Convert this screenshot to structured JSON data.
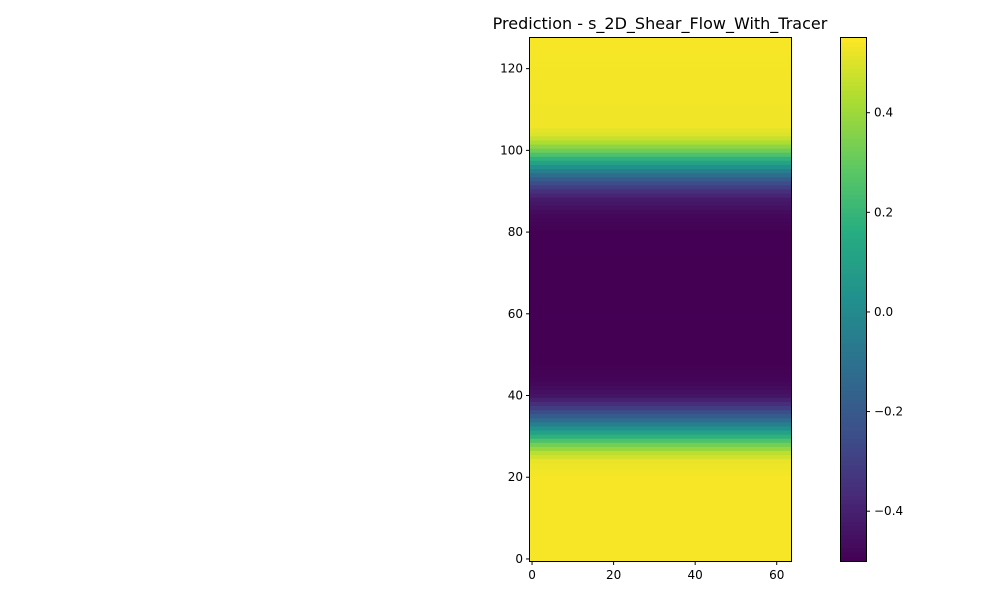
{
  "chart_data": {
    "type": "heatmap",
    "title": "Prediction - s_2D_Shear_Flow_With_Tracer",
    "xlabel": "",
    "ylabel": "",
    "xlim": [
      -0.5,
      63.5
    ],
    "ylim": [
      -0.5,
      127.5
    ],
    "xticks": [
      0,
      20,
      40,
      60
    ],
    "yticks": [
      0,
      20,
      40,
      60,
      80,
      100,
      120
    ],
    "grid": false,
    "colormap": "viridis",
    "shape": [
      128,
      64
    ],
    "profile_note": "",
    "row_profile": {
      "y": [
        0,
        20,
        24,
        26,
        28,
        30,
        32,
        34,
        36,
        38,
        40,
        44,
        48,
        80,
        84,
        88,
        90,
        92,
        94,
        96,
        98,
        100,
        102,
        104,
        106,
        127
      ],
      "value": [
        0.54,
        0.54,
        0.52,
        0.45,
        0.33,
        0.18,
        0.03,
        -0.12,
        -0.25,
        -0.36,
        -0.44,
        -0.49,
        -0.5,
        -0.5,
        -0.48,
        -0.42,
        -0.35,
        -0.25,
        -0.12,
        0.03,
        0.18,
        0.32,
        0.43,
        0.5,
        0.53,
        0.54
      ]
    },
    "colorbar": {
      "vmin": -0.5,
      "vmax": 0.55,
      "ticks": [
        -0.4,
        -0.2,
        0.0,
        0.2,
        0.4
      ],
      "tick_labels": [
        "−0.4",
        "−0.2",
        "0.0",
        "0.2",
        "0.4"
      ]
    }
  }
}
